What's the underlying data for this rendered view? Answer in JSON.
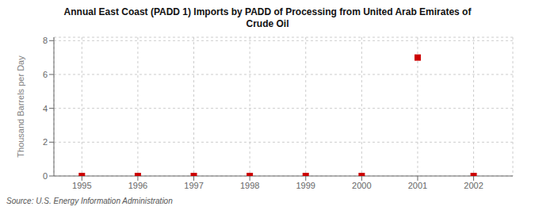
{
  "chart_data": {
    "type": "scatter",
    "title": "Annual East Coast (PADD 1) Imports by PADD of Processing from United Arab Emirates of\nCrude Oil",
    "ylabel": "Thousand Barrels per Day",
    "annotations": [
      "Source: U.S. Energy Information Administration"
    ],
    "x": [
      1995,
      1996,
      1997,
      1998,
      1999,
      2000,
      2001,
      2002
    ],
    "values": [
      0,
      0,
      0,
      0,
      0,
      0,
      7,
      0
    ],
    "color": "#cc0000",
    "marker": "square",
    "xlim": [
      1994.5,
      2002.7
    ],
    "xticks": [
      1995,
      1996,
      1997,
      1998,
      1999,
      2000,
      2001,
      2002
    ],
    "ylim": [
      0,
      8.2
    ],
    "yticks": [
      0,
      2,
      4,
      6,
      8
    ],
    "grid": true
  }
}
